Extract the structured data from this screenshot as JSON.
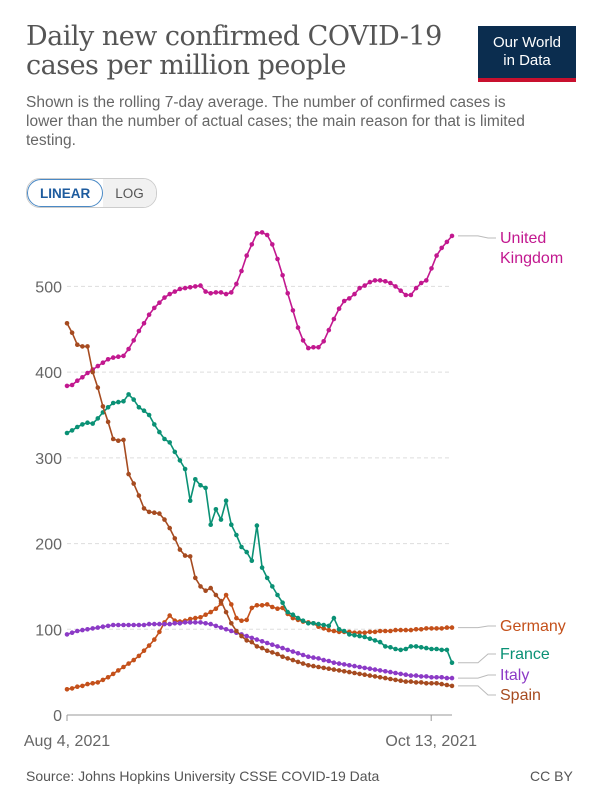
{
  "header": {
    "title": "Daily new confirmed COVID-19 cases per million people",
    "subtitle": "Shown is the rolling 7-day average. The number of confirmed cases is lower than the number of actual cases; the main reason for that is limited testing.",
    "logo_line1": "Our World",
    "logo_line2": "in Data"
  },
  "scale_toggle": {
    "linear_label": "LINEAR",
    "log_label": "LOG",
    "selected": "LINEAR"
  },
  "footer": {
    "source": "Source: Johns Hopkins University CSSE COVID-19 Data",
    "license": "CC BY"
  },
  "chart_data": {
    "type": "line",
    "title": "Daily new confirmed COVID-19 cases per million people",
    "x_tick_labels": [
      "Aug 4, 2021",
      "Oct 13, 2021"
    ],
    "x_tick_dates": [
      "2021-08-04",
      "2021-10-13"
    ],
    "x_range": [
      "2021-08-04",
      "2021-10-17"
    ],
    "ylim": [
      0,
      560
    ],
    "yticks": [
      0,
      100,
      200,
      300,
      400,
      500
    ],
    "grid": "horizontal dashed",
    "legend": "right, labels at line ends",
    "series": [
      {
        "name": "United Kingdom",
        "color": "#c2188f",
        "values": [
          384,
          385,
          390,
          394,
          399,
          403,
          407,
          411,
          415,
          417,
          418,
          419,
          427,
          437,
          448,
          457,
          467,
          475,
          481,
          487,
          491,
          494,
          497,
          498,
          499,
          500,
          501,
          494,
          492,
          493,
          493,
          491,
          493,
          503,
          518,
          536,
          549,
          562,
          563,
          560,
          549,
          532,
          513,
          492,
          472,
          452,
          437,
          428,
          429,
          429,
          436,
          449,
          462,
          474,
          483,
          486,
          491,
          498,
          501,
          505,
          507,
          507,
          506,
          504,
          500,
          495,
          490,
          490,
          498,
          504,
          507,
          521,
          536,
          545,
          552,
          559
        ]
      },
      {
        "name": "Germany",
        "color": "#c4501a",
        "values": [
          30,
          31,
          33,
          34,
          36,
          37,
          38,
          41,
          44,
          48,
          52,
          56,
          60,
          64,
          69,
          75,
          81,
          88,
          97,
          108,
          116,
          110,
          109,
          110,
          112,
          113,
          114,
          117,
          120,
          124,
          130,
          140,
          129,
          113,
          110,
          111,
          125,
          128,
          128,
          129,
          126,
          124,
          125,
          118,
          113,
          111,
          109,
          108,
          107,
          103,
          101,
          99,
          98,
          97,
          97,
          97,
          96,
          96,
          96,
          97,
          97,
          98,
          98,
          98,
          99,
          99,
          99,
          99,
          100,
          100,
          101,
          101,
          101,
          101,
          102,
          102
        ]
      },
      {
        "name": "France",
        "color": "#0a9175",
        "values": [
          329,
          332,
          336,
          339,
          341,
          340,
          346,
          353,
          359,
          364,
          365,
          366,
          374,
          368,
          359,
          355,
          350,
          339,
          330,
          322,
          318,
          307,
          297,
          287,
          250,
          275,
          268,
          265,
          222,
          240,
          228,
          250,
          222,
          210,
          196,
          190,
          180,
          221,
          172,
          160,
          150,
          140,
          131,
          120,
          117,
          113,
          110,
          107,
          107,
          106,
          105,
          104,
          113,
          100,
          98,
          94,
          93,
          92,
          91,
          89,
          87,
          85,
          80,
          79,
          77,
          76,
          77,
          80,
          80,
          79,
          78,
          77,
          77,
          76,
          76,
          61
        ]
      },
      {
        "name": "Italy",
        "color": "#8c3ac6",
        "values": [
          94,
          96,
          98,
          99,
          100,
          101,
          102,
          103,
          104,
          105,
          105,
          105,
          105,
          105,
          105,
          105,
          106,
          106,
          106,
          106,
          106,
          107,
          107,
          108,
          108,
          108,
          108,
          107,
          106,
          104,
          102,
          100,
          98,
          96,
          94,
          92,
          90,
          88,
          86,
          84,
          82,
          80,
          78,
          76,
          74,
          72,
          70,
          68,
          67,
          66,
          64,
          63,
          61,
          60,
          59,
          58,
          57,
          56,
          55,
          54,
          53,
          52,
          51,
          50,
          49,
          48,
          47,
          46,
          46,
          45,
          45,
          44,
          44,
          44,
          43,
          43
        ]
      },
      {
        "name": "Spain",
        "color": "#a64b20",
        "values": [
          457,
          446,
          432,
          430,
          430,
          400,
          382,
          360,
          342,
          322,
          320,
          321,
          281,
          270,
          256,
          241,
          237,
          236,
          235,
          228,
          218,
          206,
          193,
          186,
          185,
          160,
          150,
          145,
          148,
          140,
          133,
          120,
          107,
          98,
          92,
          87,
          85,
          80,
          78,
          75,
          73,
          71,
          68,
          66,
          64,
          62,
          60,
          58,
          57,
          56,
          55,
          54,
          53,
          52,
          51,
          50,
          49,
          48,
          47,
          46,
          45,
          44,
          43,
          42,
          41,
          40,
          39,
          39,
          38,
          38,
          37,
          37,
          37,
          36,
          35,
          34
        ]
      }
    ]
  }
}
